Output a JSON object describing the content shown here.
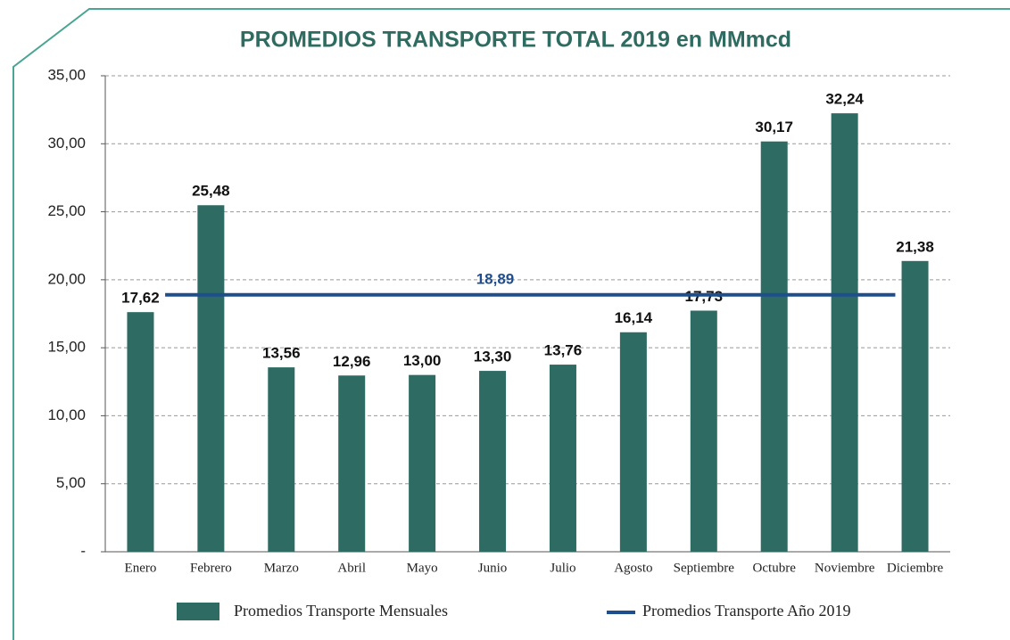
{
  "chart_data": {
    "type": "bar",
    "title": "PROMEDIOS TRANSPORTE TOTAL 2019 en MMmcd",
    "categories": [
      "Enero",
      "Febrero",
      "Marzo",
      "Abril",
      "Mayo",
      "Junio",
      "Julio",
      "Agosto",
      "Septiembre",
      "Octubre",
      "Noviembre",
      "Diciembre"
    ],
    "series": [
      {
        "name": "Promedios Transporte Mensuales",
        "color": "#2e6b62",
        "values": [
          17.62,
          25.48,
          13.56,
          12.96,
          13.0,
          13.3,
          13.76,
          16.14,
          17.73,
          30.17,
          32.24,
          21.38
        ],
        "value_labels": [
          "17,62",
          "25,48",
          "13,56",
          "12,96",
          "13,00",
          "13,30",
          "13,76",
          "16,14",
          "17,73",
          "30,17",
          "32,24",
          "21,38"
        ]
      }
    ],
    "reference_line": {
      "name": "Promedios Transporte Año 2019",
      "value": 18.89,
      "value_label": "18,89",
      "color": "#1f4e8c"
    },
    "ylim": [
      0,
      35
    ],
    "yticks": [
      {
        "value": 0,
        "label": "-"
      },
      {
        "value": 5,
        "label": "5,00"
      },
      {
        "value": 10,
        "label": "10,00"
      },
      {
        "value": 15,
        "label": "15,00"
      },
      {
        "value": 20,
        "label": "20,00"
      },
      {
        "value": 25,
        "label": "25,00"
      },
      {
        "value": 30,
        "label": "30,00"
      },
      {
        "value": 35,
        "label": "35,00"
      }
    ],
    "grid": true
  }
}
